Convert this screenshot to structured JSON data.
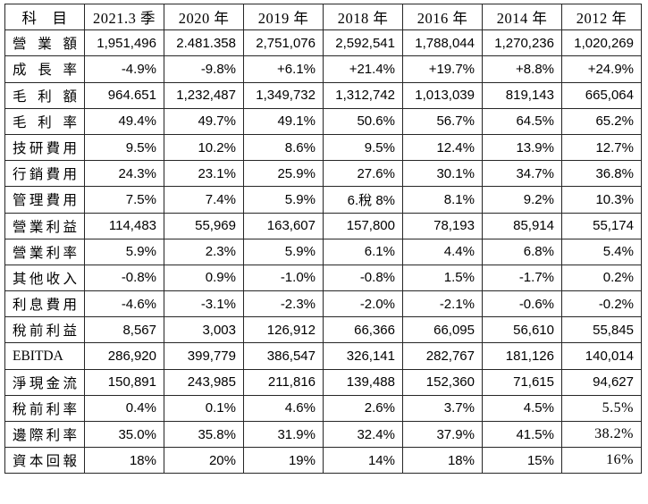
{
  "table": {
    "columns": [
      "科　目",
      "2021.3 季",
      "2020 年",
      "2019 年",
      "2018 年",
      "2016 年",
      "2014 年",
      "2012 年"
    ],
    "rows": [
      {
        "label": "營業額",
        "values": [
          "1,951,496",
          "2.481.358",
          "2,751,076",
          "2,592,541",
          "1,788,044",
          "1,270,236",
          "1,020,269"
        ]
      },
      {
        "label": "成長率",
        "values": [
          "-4.9%",
          "-9.8%",
          "+6.1%",
          "+21.4%",
          "+19.7%",
          "+8.8%",
          "+24.9%"
        ]
      },
      {
        "label": "毛利額",
        "values": [
          "964.651",
          "1,232,487",
          "1,349,732",
          "1,312,742",
          "1,013,039",
          "819,143",
          "665,064"
        ]
      },
      {
        "label": "毛利率",
        "values": [
          "49.4%",
          "49.7%",
          "49.1%",
          "50.6%",
          "56.7%",
          "64.5%",
          "65.2%"
        ]
      },
      {
        "label": "技研費用",
        "values": [
          "9.5%",
          "10.2%",
          "8.6%",
          "9.5%",
          "12.4%",
          "13.9%",
          "12.7%"
        ]
      },
      {
        "label": "行銷費用",
        "values": [
          "24.3%",
          "23.1%",
          "25.9%",
          "27.6%",
          "30.1%",
          "34.7%",
          "36.8%"
        ]
      },
      {
        "label": "管理費用",
        "values": [
          "7.5%",
          "7.4%",
          "5.9%",
          "6.稅 8%",
          "8.1%",
          "9.2%",
          "10.3%"
        ]
      },
      {
        "label": "營業利益",
        "values": [
          "114,483",
          "55,969",
          "163,607",
          "157,800",
          "78,193",
          "85,914",
          "55,174"
        ]
      },
      {
        "label": "營業利率",
        "values": [
          "5.9%",
          "2.3%",
          "5.9%",
          "6.1%",
          "4.4%",
          "6.8%",
          "5.4%"
        ]
      },
      {
        "label": "其他收入",
        "values": [
          "-0.8%",
          "0.9%",
          "-1.0%",
          "-0.8%",
          "1.5%",
          "-1.7%",
          "0.2%"
        ]
      },
      {
        "label": "利息費用",
        "values": [
          "-4.6%",
          "-3.1%",
          "-2.3%",
          "-2.0%",
          "-2.1%",
          "-0.6%",
          "-0.2%"
        ]
      },
      {
        "label": "稅前利益",
        "values": [
          "8,567",
          "3,003",
          "126,912",
          "66,366",
          "66,095",
          "56,610",
          "55,845"
        ]
      },
      {
        "label": "EBITDA",
        "values": [
          "286,920",
          "399,779",
          "386,547",
          "326,141",
          "282,767",
          "181,126",
          "140,014"
        ]
      },
      {
        "label": "淨現金流",
        "values": [
          "150,891",
          "243,985",
          "211,816",
          "139,488",
          "152,360",
          "71,615",
          "94,627"
        ]
      },
      {
        "label": "稅前利率",
        "values": [
          "0.4%",
          "0.1%",
          "4.6%",
          "2.6%",
          "3.7%",
          "4.5%",
          "5.5%"
        ]
      },
      {
        "label": "邊際利率",
        "values": [
          "35.0%",
          "35.8%",
          "31.9%",
          "32.4%",
          "37.9%",
          "41.5%",
          "38.2%"
        ]
      },
      {
        "label": "資本回報",
        "values": [
          "18%",
          "20%",
          "19%",
          "14%",
          "18%",
          "15%",
          "16%"
        ]
      }
    ]
  },
  "colors": {
    "text": "#000000",
    "border": "#262626",
    "background": "#ffffff"
  }
}
